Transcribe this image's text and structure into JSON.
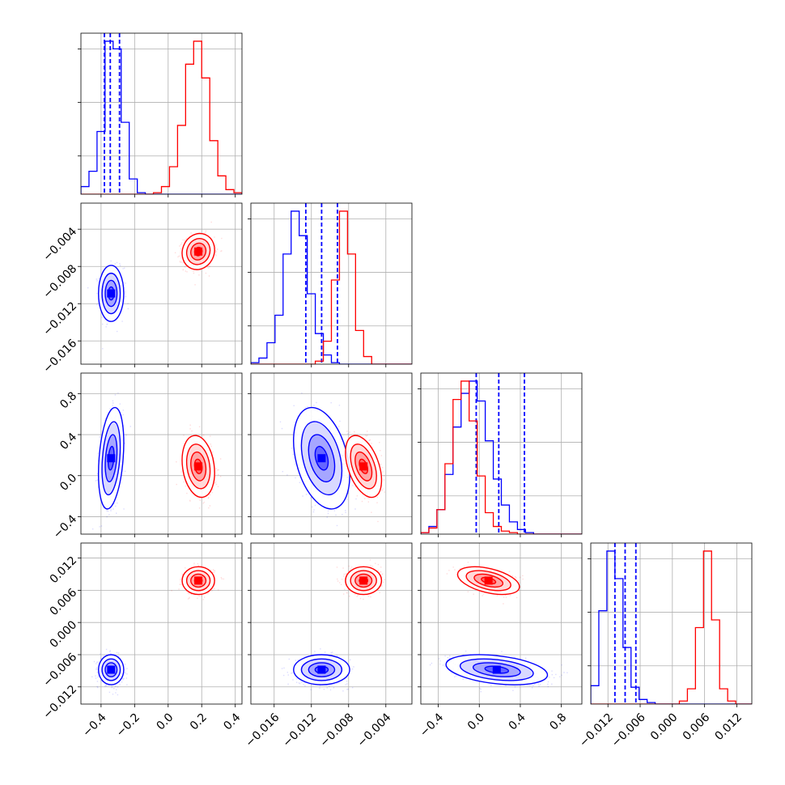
{
  "chart_data": {
    "type": "corner",
    "title": "",
    "parameters": [
      {
        "label": "",
        "ticks": [
          -0.4,
          -0.2,
          0.0,
          0.2,
          0.4
        ],
        "tick_labels": [
          "−0.4",
          "−0.2",
          "0.0",
          "0.2",
          "0.4"
        ],
        "range": [
          -0.52,
          0.44
        ]
      },
      {
        "label": "",
        "ticks": [
          -0.016,
          -0.012,
          -0.008,
          -0.004
        ],
        "tick_labels": [
          "−0.016",
          "−0.012",
          "−0.008",
          "−0.004"
        ],
        "range": [
          -0.0185,
          -0.0012
        ]
      },
      {
        "label": "",
        "ticks": [
          -0.4,
          0.0,
          0.4,
          0.8
        ],
        "tick_labels": [
          "−0.4",
          "0.0",
          "0.4",
          "0.8"
        ],
        "range": [
          -0.57,
          1.0
        ]
      },
      {
        "label": "",
        "ticks": [
          -0.012,
          -0.006,
          0.0,
          0.006,
          0.012
        ],
        "tick_labels": [
          "−0.012",
          "−0.006",
          "0.000",
          "0.006",
          "0.012"
        ],
        "range": [
          -0.0152,
          0.0148
        ]
      }
    ],
    "series": [
      {
        "name": "",
        "color": "#0000ff",
        "means": [
          -0.34,
          -0.0109,
          0.17,
          -0.0088
        ],
        "sds": [
          0.035,
          0.0014,
          0.23,
          0.0013
        ],
        "correlations": [
          [
            0,
            1,
            0.0
          ],
          [
            0,
            2,
            0.3
          ],
          [
            0,
            3,
            0.0
          ],
          [
            1,
            2,
            -0.35
          ],
          [
            1,
            3,
            0.0
          ],
          [
            2,
            3,
            -0.35
          ]
        ],
        "quantiles": [
          [
            -0.38,
            -0.345,
            -0.29
          ],
          [
            -0.0126,
            -0.0109,
            -0.0092
          ],
          [
            -0.03,
            0.19,
            0.44
          ],
          [
            -0.0107,
            -0.0088,
            -0.0068
          ]
        ],
        "histograms": [
          [
            0.05,
            0.15,
            0.41,
            1.0,
            0.95,
            0.47,
            0.1,
            0.01,
            0,
            0,
            0,
            0,
            0,
            0,
            0,
            0,
            0,
            0,
            0,
            0
          ],
          [
            0.01,
            0.04,
            0.14,
            0.32,
            0.72,
            1.0,
            0.84,
            0.46,
            0.2,
            0.06,
            0.01,
            0,
            0,
            0,
            0,
            0,
            0,
            0,
            0,
            0
          ],
          [
            0.01,
            0.05,
            0.16,
            0.39,
            0.7,
            0.92,
            1.0,
            0.87,
            0.61,
            0.36,
            0.19,
            0.08,
            0.03,
            0.01,
            0,
            0,
            0,
            0,
            0,
            0
          ],
          [
            0.12,
            0.61,
            1.0,
            0.82,
            0.37,
            0.11,
            0.03,
            0.01,
            0,
            0,
            0,
            0,
            0,
            0,
            0,
            0,
            0,
            0,
            0,
            0
          ]
        ]
      },
      {
        "name": "",
        "color": "#ff0000",
        "means": [
          0.18,
          -0.0064,
          0.09,
          0.0078
        ],
        "sds": [
          0.045,
          0.0009,
          0.14,
          0.0012
        ],
        "correlations": [
          [
            0,
            1,
            0.1
          ],
          [
            0,
            2,
            -0.2
          ],
          [
            0,
            3,
            0.0
          ],
          [
            1,
            2,
            -0.45
          ],
          [
            1,
            3,
            0.0
          ],
          [
            2,
            3,
            -0.45
          ]
        ],
        "histograms": [
          [
            0,
            0,
            0,
            0,
            0,
            0,
            0,
            0,
            0,
            0.01,
            0.05,
            0.18,
            0.45,
            0.85,
            1.0,
            0.76,
            0.35,
            0.12,
            0.03,
            0.01
          ],
          [
            0,
            0,
            0,
            0,
            0,
            0,
            0,
            0,
            0.02,
            0.15,
            0.55,
            1.0,
            0.72,
            0.22,
            0.05,
            0,
            0,
            0,
            0,
            0
          ],
          [
            0.01,
            0.04,
            0.16,
            0.46,
            0.88,
            1.0,
            0.74,
            0.38,
            0.14,
            0.05,
            0.02,
            0.01,
            0,
            0,
            0,
            0,
            0,
            0,
            0,
            0
          ],
          [
            0,
            0,
            0,
            0,
            0,
            0,
            0,
            0,
            0,
            0,
            0,
            0.02,
            0.1,
            0.5,
            1.0,
            0.55,
            0.1,
            0.02,
            0,
            0
          ]
        ]
      }
    ],
    "grid": true,
    "legend": "none"
  }
}
